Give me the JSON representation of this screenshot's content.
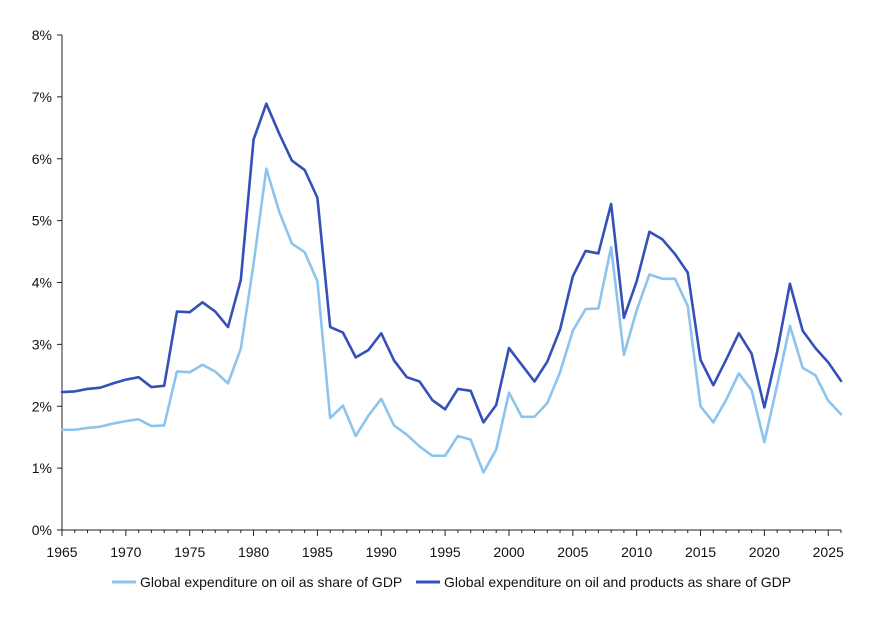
{
  "chart_data": {
    "type": "line",
    "title": "",
    "xlabel": "",
    "ylabel": "",
    "xlim": [
      1965,
      2026
    ],
    "ylim": [
      0,
      8
    ],
    "x_ticks": [
      1965,
      1970,
      1975,
      1980,
      1985,
      1990,
      1995,
      2000,
      2005,
      2010,
      2015,
      2020,
      2025
    ],
    "x_tick_labels": [
      "1965",
      "1970",
      "1975",
      "1980",
      "1985",
      "1990",
      "1995",
      "2000",
      "2005",
      "2010",
      "2015",
      "2020",
      "2025"
    ],
    "y_ticks": [
      0,
      1,
      2,
      3,
      4,
      5,
      6,
      7,
      8
    ],
    "y_tick_labels": [
      "0%",
      "1%",
      "2%",
      "3%",
      "4%",
      "5%",
      "6%",
      "7%",
      "8%"
    ],
    "grid": false,
    "legend_position": "bottom",
    "x": [
      1965,
      1966,
      1967,
      1968,
      1969,
      1970,
      1971,
      1972,
      1973,
      1974,
      1975,
      1976,
      1977,
      1978,
      1979,
      1980,
      1981,
      1982,
      1983,
      1984,
      1985,
      1986,
      1987,
      1988,
      1989,
      1990,
      1991,
      1992,
      1993,
      1994,
      1995,
      1996,
      1997,
      1998,
      1999,
      2000,
      2001,
      2002,
      2003,
      2004,
      2005,
      2006,
      2007,
      2008,
      2009,
      2010,
      2011,
      2012,
      2013,
      2014,
      2015,
      2016,
      2017,
      2018,
      2019,
      2020,
      2021,
      2022,
      2023,
      2024,
      2025,
      2026
    ],
    "series": [
      {
        "name": "Global expenditure on oil as share of GDP",
        "color": "#8cc4ee",
        "values": [
          1.62,
          1.62,
          1.65,
          1.67,
          1.72,
          1.76,
          1.79,
          1.68,
          1.69,
          2.56,
          2.55,
          2.67,
          2.56,
          2.37,
          2.93,
          4.3,
          5.84,
          5.15,
          4.63,
          4.49,
          4.02,
          1.81,
          2.01,
          1.52,
          1.85,
          2.12,
          1.69,
          1.54,
          1.35,
          1.2,
          1.2,
          1.52,
          1.46,
          0.93,
          1.3,
          2.22,
          1.83,
          1.83,
          2.05,
          2.55,
          3.22,
          3.57,
          3.58,
          4.57,
          2.83,
          3.55,
          4.13,
          4.06,
          4.06,
          3.62,
          2.0,
          1.74,
          2.1,
          2.53,
          2.26,
          1.42,
          2.34,
          3.3,
          2.62,
          2.5,
          2.09,
          1.87
        ]
      },
      {
        "name": "Global expenditure on oil and products as share of GDP",
        "color": "#3550b8",
        "values": [
          2.23,
          2.24,
          2.28,
          2.3,
          2.37,
          2.43,
          2.47,
          2.31,
          2.33,
          3.53,
          3.52,
          3.68,
          3.53,
          3.28,
          4.04,
          6.31,
          6.89,
          6.41,
          5.97,
          5.82,
          5.37,
          3.28,
          3.19,
          2.79,
          2.91,
          3.18,
          2.74,
          2.47,
          2.4,
          2.1,
          1.95,
          2.28,
          2.25,
          1.74,
          2.02,
          2.94,
          2.67,
          2.4,
          2.72,
          3.24,
          4.1,
          4.51,
          4.47,
          5.27,
          3.43,
          4.02,
          4.82,
          4.7,
          4.46,
          4.16,
          2.75,
          2.34,
          2.75,
          3.18,
          2.85,
          1.98,
          2.88,
          3.98,
          3.22,
          2.94,
          2.71,
          2.41
        ]
      }
    ]
  }
}
